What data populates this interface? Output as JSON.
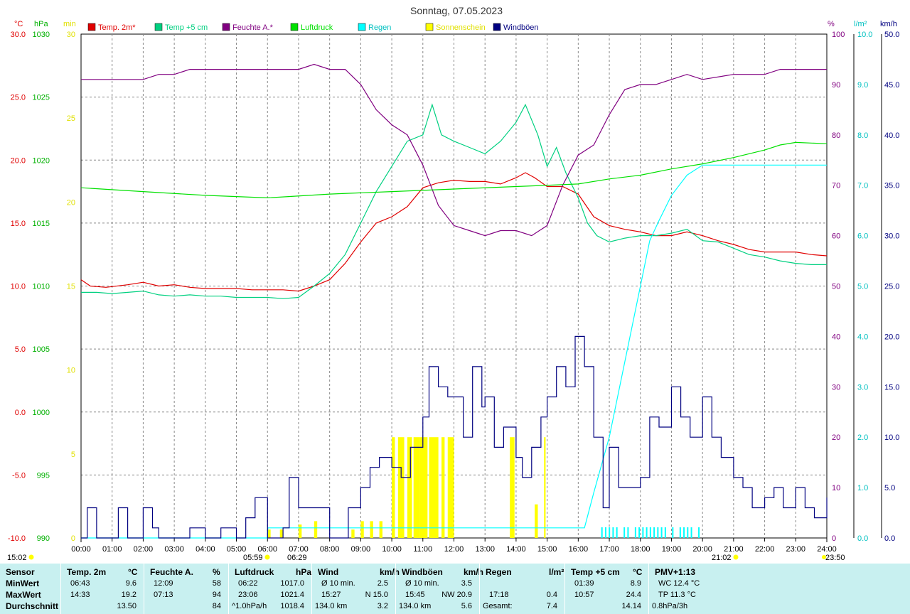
{
  "title": "Sonntag, 07.05.2023",
  "colors": {
    "temp2m": "#e00000",
    "temp5cm": "#00d080",
    "humidity": "#800080",
    "pressure": "#00e000",
    "rain": "#00ffff",
    "sun": "#ffff00",
    "gusts": "#000080",
    "statsBg": "#c8f0f0"
  },
  "chart_data": {
    "type": "line",
    "grid": true,
    "legend_position": "top",
    "x_ticks": [
      "00:00",
      "01:00",
      "02:00",
      "03:00",
      "04:00",
      "05:00",
      "06:00",
      "07:00",
      "08:00",
      "09:00",
      "10:00",
      "11:00",
      "12:00",
      "13:00",
      "14:00",
      "15:00",
      "16:00",
      "17:00",
      "18:00",
      "19:00",
      "20:00",
      "21:00",
      "22:00",
      "23:00",
      "24:00"
    ],
    "axes": {
      "temp": {
        "unit": "°C",
        "min": -10,
        "max": 30,
        "ticks": [
          "30.0",
          "25.0",
          "20.0",
          "15.0",
          "10.0",
          "5.0",
          "0.0",
          "-5.0",
          "-10.0"
        ]
      },
      "pressure": {
        "unit": "hPa",
        "min": 990,
        "max": 1030,
        "ticks": [
          "1030",
          "1025",
          "1020",
          "1015",
          "1010",
          "1005",
          "1000",
          "995",
          "990"
        ]
      },
      "sun": {
        "unit": "min",
        "min": 0,
        "max": 30,
        "ticks": [
          "30",
          "25",
          "20",
          "15",
          "10",
          "5",
          "0"
        ]
      },
      "humidity": {
        "unit": "%",
        "min": 0,
        "max": 100,
        "ticks": [
          "100",
          "90",
          "80",
          "70",
          "60",
          "50",
          "40",
          "30",
          "20",
          "10",
          "0"
        ]
      },
      "rain": {
        "unit": "l/m²",
        "min": 0,
        "max": 10,
        "ticks": [
          "10.0",
          "9.0",
          "8.0",
          "7.0",
          "6.0",
          "5.0",
          "4.0",
          "3.0",
          "2.0",
          "1.0",
          "0.0"
        ]
      },
      "wind": {
        "unit": "km/h",
        "min": 0,
        "max": 50,
        "ticks": [
          "50.0",
          "45.0",
          "40.0",
          "35.0",
          "30.0",
          "25.0",
          "20.0",
          "15.0",
          "10.0",
          "5.0",
          "0.0"
        ]
      }
    },
    "series": [
      {
        "name": "Temp. 2m*",
        "axis": "temp",
        "key": "temp2m",
        "x": [
          0,
          0.3,
          0.8,
          1.5,
          2,
          2.5,
          3,
          3.5,
          4,
          4.5,
          5,
          5.5,
          6,
          6.5,
          7,
          7.5,
          8,
          8.5,
          9,
          9.5,
          10,
          10.5,
          11,
          11.5,
          12,
          12.5,
          13,
          13.5,
          14,
          14.3,
          14.6,
          15,
          15.5,
          16,
          16.5,
          17,
          17.5,
          18,
          18.5,
          19,
          19.5,
          20,
          20.5,
          21,
          21.5,
          22,
          22.5,
          23,
          23.5,
          24
        ],
        "values": [
          10.5,
          10.0,
          9.9,
          10.1,
          10.3,
          10.0,
          10.1,
          9.9,
          9.8,
          9.8,
          9.8,
          9.7,
          9.7,
          9.7,
          9.6,
          10.0,
          10.5,
          11.8,
          13.5,
          15.0,
          15.5,
          16.3,
          17.8,
          18.2,
          18.4,
          18.3,
          18.3,
          18.1,
          18.6,
          19.0,
          18.6,
          17.9,
          17.9,
          17.3,
          15.5,
          14.8,
          14.5,
          14.3,
          14.0,
          14.0,
          14.3,
          14.0,
          13.6,
          13.3,
          12.9,
          12.7,
          12.7,
          12.7,
          12.5,
          12.4
        ]
      },
      {
        "name": "Temp +5 cm",
        "axis": "temp",
        "key": "temp5cm",
        "x": [
          0,
          0.5,
          1,
          1.5,
          2,
          2.5,
          3,
          3.5,
          4,
          4.5,
          5,
          5.5,
          6,
          6.5,
          7,
          7.5,
          8,
          8.5,
          9,
          9.5,
          10,
          10.5,
          11,
          11.3,
          11.6,
          12,
          12.5,
          13,
          13.5,
          14,
          14.3,
          14.7,
          15,
          15.3,
          15.6,
          16,
          16.3,
          16.6,
          17,
          17.5,
          18,
          18.5,
          19,
          19.5,
          20,
          20.5,
          21,
          21.5,
          22,
          22.5,
          23,
          23.5,
          24
        ],
        "values": [
          9.5,
          9.5,
          9.4,
          9.5,
          9.6,
          9.3,
          9.2,
          9.3,
          9.2,
          9.2,
          9.1,
          9.1,
          9.1,
          9.0,
          9.1,
          10.0,
          11.0,
          12.5,
          15.0,
          17.5,
          19.5,
          21.5,
          22.0,
          24.4,
          22.0,
          21.5,
          21.0,
          20.5,
          21.5,
          23.0,
          24.4,
          22.0,
          19.5,
          21.0,
          19.0,
          17.0,
          15.0,
          14.0,
          13.5,
          13.8,
          14.0,
          14.0,
          14.2,
          14.5,
          13.6,
          13.5,
          13.0,
          12.5,
          12.3,
          12.0,
          11.8,
          11.7,
          11.7
        ]
      },
      {
        "name": "Feuchte A.*",
        "axis": "humidity",
        "key": "humidity",
        "x": [
          0,
          1,
          2,
          2.5,
          3,
          3.5,
          4,
          5,
          6,
          7,
          7.5,
          8,
          8.5,
          9,
          9.5,
          10,
          10.5,
          11,
          11.5,
          12,
          12.5,
          13,
          13.5,
          14,
          14.5,
          15,
          15.5,
          16,
          16.5,
          17,
          17.5,
          18,
          18.5,
          19,
          19.5,
          20,
          21,
          22,
          22.5,
          23,
          24
        ],
        "values": [
          91,
          91,
          91,
          92,
          92,
          93,
          93,
          93,
          93,
          93,
          94,
          93,
          93,
          90,
          85,
          82,
          80,
          74,
          66,
          62,
          61,
          60,
          61,
          61,
          60,
          62,
          70,
          76,
          78,
          84,
          89,
          90,
          90,
          91,
          92,
          91,
          92,
          92,
          93,
          93,
          93
        ],
        "min_label": "12:09",
        "min": 58,
        "max_label": "07:13",
        "max": 94
      },
      {
        "name": "Luftdruck",
        "axis": "pressure",
        "key": "pressure",
        "x": [
          0,
          2,
          4,
          6,
          8,
          10,
          12,
          14,
          15,
          16,
          17,
          18,
          19,
          20,
          21,
          22,
          22.5,
          23,
          24
        ],
        "values": [
          1017.8,
          1017.5,
          1017.2,
          1017.0,
          1017.3,
          1017.5,
          1017.7,
          1017.9,
          1018.0,
          1018.1,
          1018.5,
          1018.8,
          1019.3,
          1019.7,
          1020.2,
          1020.8,
          1021.2,
          1021.4,
          1021.3
        ]
      },
      {
        "name": "Regen",
        "axis": "rain",
        "key": "rain",
        "x": [
          0,
          6,
          6.01,
          16.2,
          16.5,
          17.0,
          17.5,
          18.0,
          18.3,
          18.6,
          19.0,
          19.5,
          20,
          21,
          22,
          23,
          24
        ],
        "values": [
          0,
          0,
          0.2,
          0.2,
          0.9,
          2.0,
          3.5,
          5.0,
          5.9,
          6.3,
          6.8,
          7.2,
          7.4,
          7.4,
          7.4,
          7.4,
          7.4
        ]
      },
      {
        "name": "Sonnenschein",
        "axis": "sun",
        "key": "sun",
        "unit": "min",
        "bars": [
          [
            6.0,
            0.1,
            0.5
          ],
          [
            6.4,
            0.1,
            0.5
          ],
          [
            7.0,
            0.1,
            0.8
          ],
          [
            7.5,
            0.1,
            1.0
          ],
          [
            8.7,
            0.1,
            0.5
          ],
          [
            9.0,
            0.1,
            1.0
          ],
          [
            9.3,
            0.1,
            1.0
          ],
          [
            9.6,
            0.1,
            1.0
          ],
          [
            10.0,
            0.1,
            6.0
          ],
          [
            10.2,
            0.2,
            6.0
          ],
          [
            10.5,
            0.15,
            6.0
          ],
          [
            10.7,
            0.2,
            6.0
          ],
          [
            10.9,
            0.25,
            6.0
          ],
          [
            11.2,
            0.3,
            6.0
          ],
          [
            11.6,
            0.1,
            6.0
          ],
          [
            11.8,
            0.2,
            6.0
          ],
          [
            13.8,
            0.15,
            6.0
          ],
          [
            14.6,
            0.1,
            2.0
          ],
          [
            14.9,
            0.05,
            6.0
          ]
        ]
      },
      {
        "name": "Windböen",
        "axis": "wind",
        "key": "gusts",
        "x": [
          0,
          0.2,
          0.5,
          1,
          1.2,
          1.5,
          2,
          2.3,
          2.5,
          3,
          3.5,
          4,
          4.5,
          5,
          5.3,
          5.6,
          6,
          6.5,
          6.7,
          7,
          7.5,
          8,
          8.3,
          8.6,
          9,
          9.3,
          9.6,
          10,
          10.3,
          10.6,
          11,
          11.2,
          11.5,
          11.8,
          12,
          12.3,
          12.6,
          12.9,
          13,
          13.3,
          13.6,
          14,
          14.2,
          14.5,
          14.8,
          15,
          15.3,
          15.6,
          15.9,
          16.2,
          16.5,
          16.8,
          17,
          17.3,
          17.6,
          18,
          18.3,
          18.6,
          19,
          19.3,
          19.6,
          20,
          20.3,
          20.6,
          21,
          21.3,
          21.6,
          22,
          22.3,
          22.6,
          23,
          23.3,
          23.6,
          24
        ],
        "values": [
          0,
          3,
          0,
          0,
          3,
          0,
          3,
          1,
          0,
          0,
          1,
          0,
          1,
          0,
          2,
          4,
          0,
          1,
          6,
          3,
          3,
          0,
          0,
          3,
          5,
          7,
          8,
          7,
          6,
          9,
          12,
          17,
          15,
          14,
          14,
          10,
          17,
          13,
          14,
          9,
          11,
          8,
          6,
          9,
          12,
          14,
          17,
          15,
          20,
          17,
          10,
          3,
          9,
          5,
          5,
          6,
          12,
          11,
          15,
          12,
          10,
          14,
          10,
          8,
          6,
          5,
          3,
          4,
          5,
          3,
          5,
          3,
          2,
          4
        ]
      }
    ]
  },
  "legend": [
    {
      "label": "Temp. 2m*",
      "key": "temp2m"
    },
    {
      "label": "Temp +5 cm",
      "key": "temp5cm"
    },
    {
      "label": "Feuchte A.*",
      "key": "humidity"
    },
    {
      "label": "Luftdruck",
      "key": "pressure"
    },
    {
      "label": "Regen",
      "key": "rain"
    },
    {
      "label": "Sonnenschein",
      "key": "sun"
    },
    {
      "label": "Windböen",
      "key": "gusts"
    }
  ],
  "annotations": {
    "sunrise_times": [
      "05:59",
      "06:29"
    ],
    "sunset_times": [
      "21:02",
      "23:50"
    ],
    "left_time": "15:02"
  },
  "stats": {
    "labels": {
      "title": "Sensor",
      "min": "MinWert",
      "max": "MaxWert",
      "avg": "Durchschnitt"
    },
    "columns": [
      {
        "head": "Temp. 2m",
        "unit": "°C",
        "min_t": "06:43",
        "min_v": "9.6",
        "max_t": "14:33",
        "max_v": "19.2",
        "avg_t": "",
        "avg_v": "13.50"
      },
      {
        "head": "Feuchte A.",
        "unit": "%",
        "min_t": "12:09",
        "min_v": "58",
        "max_t": "07:13",
        "max_v": "94",
        "avg_t": "",
        "avg_v": "84"
      },
      {
        "head": "Luftdruck",
        "unit": "hPa",
        "min_t": "06:22",
        "min_v": "1017.0",
        "max_t": "23:06",
        "max_v": "1021.4",
        "avg_t": "^1.0hPa/h",
        "avg_v": "1018.4"
      },
      {
        "head": "Wind",
        "unit": "km/h",
        "min_t": "Ø 10 min.",
        "min_v": "2.5",
        "max_t": "15:27",
        "max_v": "N 15.0",
        "avg_t": "134.0 km",
        "avg_v": "3.2"
      },
      {
        "head": "Windböen",
        "unit": "km/h",
        "min_t": "Ø 10 min.",
        "min_v": "3.5",
        "max_t": "15:45",
        "max_v": "NW 20.9",
        "avg_t": "134.0 km",
        "avg_v": "5.6"
      },
      {
        "head": "Regen",
        "unit": "l/m²",
        "min_t": "",
        "min_v": "",
        "max_t": "17:18",
        "max_v": "0.4",
        "avg_t": "Gesamt:",
        "avg_v": "7.4"
      },
      {
        "head": "Temp +5 cm",
        "unit": "°C",
        "min_t": "01:39",
        "min_v": "8.9",
        "max_t": "10:57",
        "max_v": "24.4",
        "avg_t": "",
        "avg_v": "14.14"
      },
      {
        "head": "PMV+1:13",
        "unit": "",
        "min_t": "WC 12.4 °C",
        "min_v": "",
        "max_t": "TP 11.3 °C",
        "max_v": "",
        "avg_t": "0.8hPa/3h",
        "avg_v": ""
      }
    ]
  }
}
